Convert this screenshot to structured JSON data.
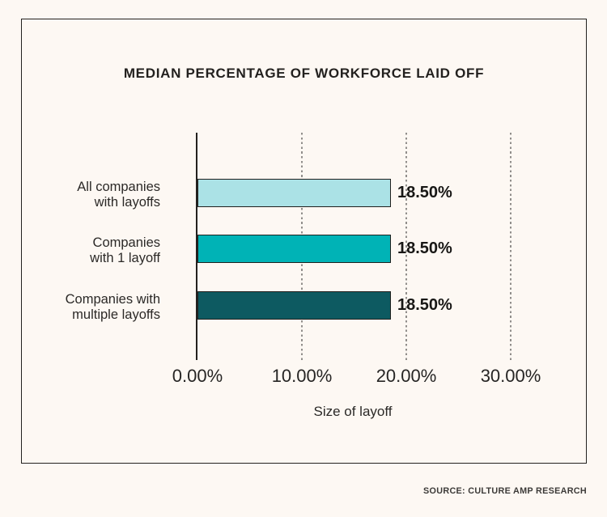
{
  "title": "MEDIAN PERCENTAGE OF WORKFORCE LAID OFF",
  "source": "SOURCE: CULTURE AMP RESEARCH",
  "chart_data": {
    "type": "bar",
    "orientation": "horizontal",
    "title": "MEDIAN PERCENTAGE OF WORKFORCE LAID OFF",
    "categories": [
      "All companies\nwith layoffs",
      "Companies\nwith 1 layoff",
      "Companies with\nmultiple layoffs"
    ],
    "values": [
      18.5,
      18.5,
      18.5
    ],
    "value_labels": [
      "18.50%",
      "18.50%",
      "18.50%"
    ],
    "bar_colors": [
      "#abe2e6",
      "#00b3b6",
      "#0d5a61"
    ],
    "xlabel": "Size of layoff",
    "ylabel": "",
    "x_ticks": [
      "0.00%",
      "10.00%",
      "20.00%",
      "30.00%"
    ],
    "x_tick_values": [
      0,
      10,
      20,
      30
    ],
    "xlim": [
      0,
      33.5
    ],
    "grid": "vertical-dashed",
    "legend": "none"
  }
}
